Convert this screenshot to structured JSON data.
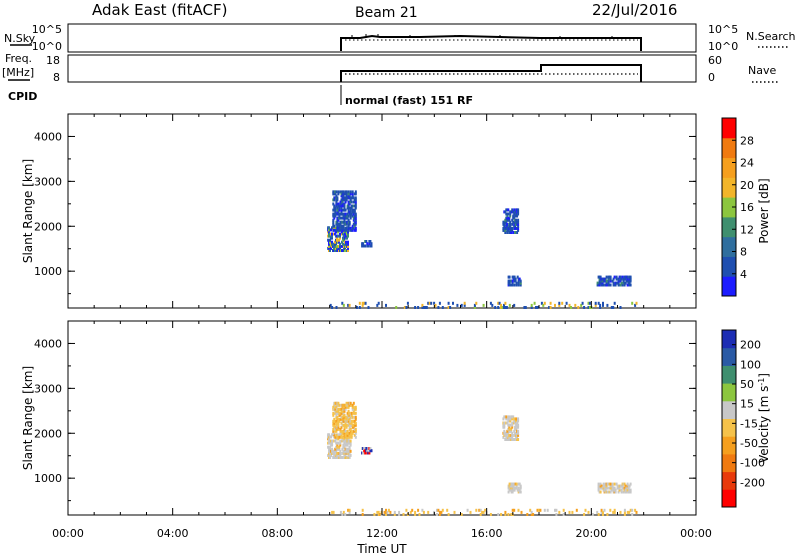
{
  "header": {
    "station": "Adak East (fitACF)",
    "beam": "Beam 21",
    "date": "22/Jul/2016"
  },
  "noise_panel": {
    "left_label": "N.Sky",
    "left_ticks": [
      "10^5",
      "10^0"
    ],
    "right_ticks": [
      "10^5",
      "10^0"
    ],
    "right_label": "N.Search"
  },
  "freq_panel": {
    "left_label_1": "Freq.",
    "left_label_2": "[MHz]",
    "left_ticks": [
      "18",
      "8"
    ],
    "right_ticks": [
      "60",
      "0"
    ],
    "right_label": "Nave"
  },
  "cpid": {
    "label": "CPID",
    "program": "normal (fast) 151 RF"
  },
  "colors": {
    "power_scale": [
      "#1c1cff",
      "#1f4fb0",
      "#2f6e9e",
      "#3f8f6f",
      "#8cc63f",
      "#f2b52a",
      "#f59f1e",
      "#f07a10",
      "#ff0000"
    ],
    "velocity_scale": [
      "#ff0000",
      "#e83a0b",
      "#f07a10",
      "#f59f1e",
      "#f5c24a",
      "#c8c8c8",
      "#8cc63f",
      "#3f8f6f",
      "#2a5aa5",
      "#1c2db4"
    ]
  },
  "chart_data": [
    {
      "type": "heatmap",
      "title": "Power",
      "xlabel": "",
      "ylabel": "Slant Range [km]",
      "x_unit": "hours UT",
      "xlim": [
        0,
        24
      ],
      "ylim": [
        180,
        4500
      ],
      "yticks": [
        "1000",
        "2000",
        "3000",
        "4000"
      ],
      "xticks": [
        "00:00",
        "04:00",
        "08:00",
        "12:00",
        "16:00",
        "20:00",
        "00:00"
      ],
      "colorbar_label": "Power [dB]",
      "colorbar_ticks": [
        "4",
        "8",
        "12",
        "16",
        "20",
        "24",
        "28"
      ],
      "colorbar_range": [
        0,
        32
      ],
      "data_window": [
        10.0,
        22.0
      ],
      "echo_regions": [
        {
          "t_start": 9.9,
          "t_end": 10.7,
          "r_start": 1450,
          "r_end": 2000,
          "level": "high"
        },
        {
          "t_start": 10.1,
          "t_end": 11.0,
          "r_start": 1900,
          "r_end": 2800,
          "level": "low"
        },
        {
          "t_start": 11.2,
          "t_end": 11.6,
          "r_start": 1550,
          "r_end": 1700,
          "level": "low"
        },
        {
          "t_start": 16.6,
          "t_end": 17.2,
          "r_start": 1850,
          "r_end": 2400,
          "level": "low"
        },
        {
          "t_start": 16.8,
          "t_end": 17.3,
          "r_start": 680,
          "r_end": 900,
          "level": "low"
        },
        {
          "t_start": 20.2,
          "t_end": 21.5,
          "r_start": 680,
          "r_end": 900,
          "level": "low"
        },
        {
          "t_start": 10.0,
          "t_end": 21.8,
          "r_start": 180,
          "r_end": 320,
          "level": "sparse"
        }
      ]
    },
    {
      "type": "heatmap",
      "title": "Velocity",
      "xlabel": "Time UT",
      "ylabel": "Slant Range [km]",
      "x_unit": "hours UT",
      "xlim": [
        0,
        24
      ],
      "ylim": [
        180,
        4500
      ],
      "yticks": [
        "1000",
        "2000",
        "3000",
        "4000"
      ],
      "xticks": [
        "00:00",
        "04:00",
        "08:00",
        "12:00",
        "16:00",
        "20:00",
        "00:00"
      ],
      "colorbar_label": "Velocity [m s^-1]",
      "colorbar_ticks": [
        "200",
        "100",
        "50",
        "15",
        "-15",
        "-50",
        "-100",
        "-200"
      ],
      "data_window": [
        10.0,
        22.0
      ],
      "echo_regions": [
        {
          "t_start": 9.9,
          "t_end": 10.8,
          "r_start": 1450,
          "r_end": 2000,
          "level": "grey"
        },
        {
          "t_start": 10.1,
          "t_end": 11.0,
          "r_start": 1900,
          "r_end": 2700,
          "level": "orange"
        },
        {
          "t_start": 11.2,
          "t_end": 11.6,
          "r_start": 1550,
          "r_end": 1700,
          "level": "mixed"
        },
        {
          "t_start": 16.6,
          "t_end": 17.2,
          "r_start": 1850,
          "r_end": 2400,
          "level": "grey"
        },
        {
          "t_start": 16.8,
          "t_end": 17.3,
          "r_start": 680,
          "r_end": 900,
          "level": "grey"
        },
        {
          "t_start": 20.2,
          "t_end": 21.5,
          "r_start": 680,
          "r_end": 900,
          "level": "grey"
        },
        {
          "t_start": 10.0,
          "t_end": 21.8,
          "r_start": 180,
          "r_end": 320,
          "level": "orange"
        }
      ]
    }
  ]
}
